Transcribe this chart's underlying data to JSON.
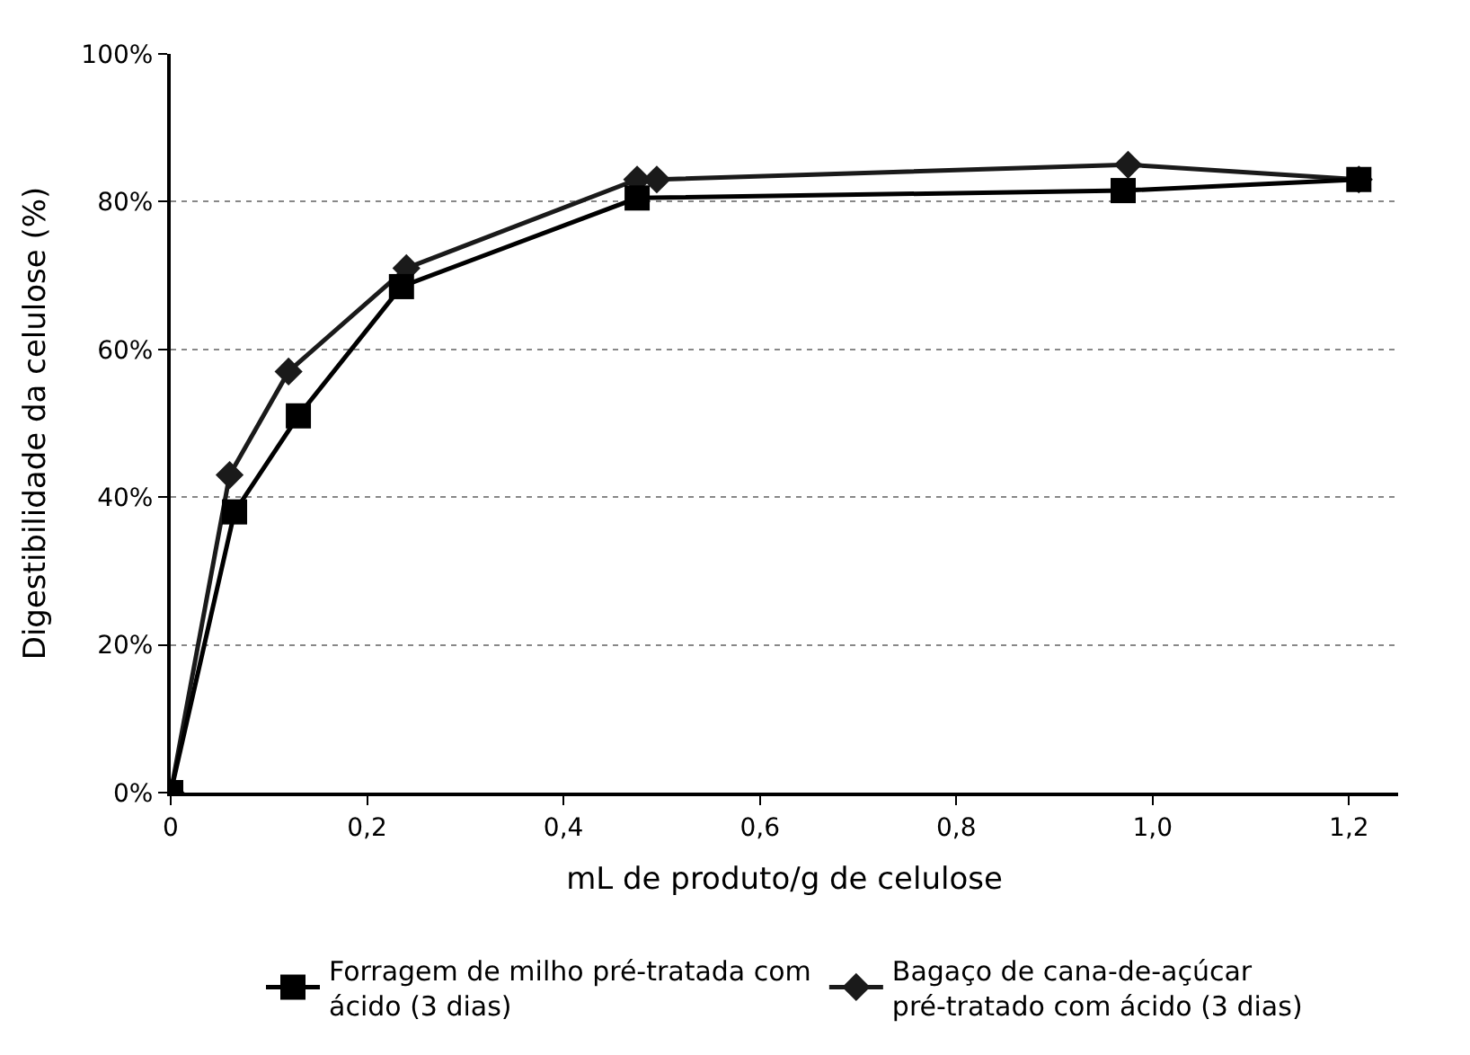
{
  "chart_data": {
    "type": "line",
    "xlabel": "mL de produto/g de celulose",
    "ylabel": "Digestibilidade da celulose (%)",
    "xlim": [
      0,
      1.25
    ],
    "xticks": [
      {
        "value": 0,
        "label": "0"
      },
      {
        "value": 0.2,
        "label": "0,2"
      },
      {
        "value": 0.4,
        "label": "0,4"
      },
      {
        "value": 0.6,
        "label": "0,6"
      },
      {
        "value": 0.8,
        "label": "0,8"
      },
      {
        "value": 1.0,
        "label": "1,0"
      },
      {
        "value": 1.2,
        "label": "1,2"
      }
    ],
    "ylim": [
      0,
      100
    ],
    "yticks": [
      {
        "value": 0,
        "label": "0%"
      },
      {
        "value": 20,
        "label": "20%"
      },
      {
        "value": 40,
        "label": "40%"
      },
      {
        "value": 60,
        "label": "60%"
      },
      {
        "value": 80,
        "label": "80%"
      },
      {
        "value": 100,
        "label": "100%"
      }
    ],
    "grid": "y",
    "legend": "bottom",
    "line_style": "solid",
    "series": [
      {
        "name": "Forragem de milho pré-tratada com ácido (3 dias)",
        "color": "#000000",
        "marker": "square",
        "x": [
          0,
          0.065,
          0.13,
          0.235,
          0.475,
          0.97,
          1.21
        ],
        "values": [
          0,
          38,
          51,
          68.5,
          80.5,
          81.5,
          83
        ]
      },
      {
        "name": "Bagaço de cana-de-açúcar pré-tratado com ácido (3 dias)",
        "color": "#1a1a1a",
        "marker": "diamond",
        "x": [
          0,
          0.06,
          0.12,
          0.24,
          0.475,
          0.495,
          0.975,
          1.21
        ],
        "values": [
          0,
          43,
          57,
          71,
          83,
          83,
          85,
          83
        ]
      }
    ]
  }
}
